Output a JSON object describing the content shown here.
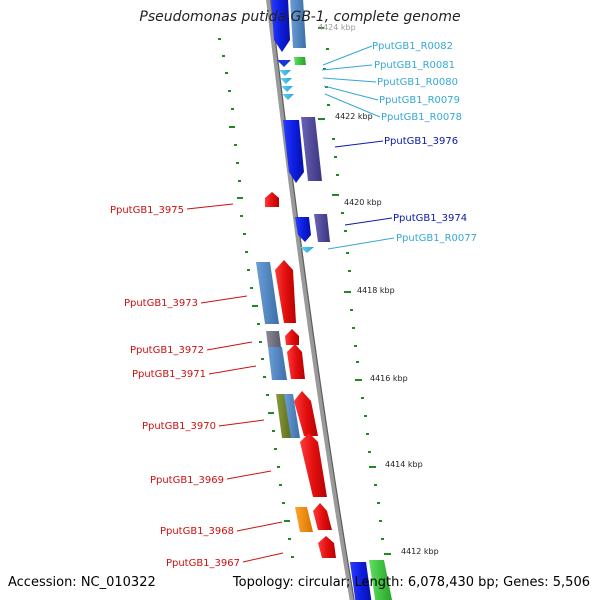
{
  "header": {
    "title": "Pseudomonas putida GB-1, complete genome"
  },
  "footer": {
    "accession": "Accession: NC_010322",
    "summary": "Topology: circular; Length: 6,078,430 bp; Genes: 5,506"
  },
  "scale_labels": [
    "4424 kbp",
    "4422 kbp",
    "4420 kbp",
    "4418 kbp",
    "4416 kbp",
    "4414 kbp",
    "4412 kbp"
  ],
  "gene_labels": {
    "right": [
      {
        "text": "PputGB1_R0082",
        "color": "#35a7d6"
      },
      {
        "text": "PputGB1_R0081",
        "color": "#35a7d6"
      },
      {
        "text": "PputGB1_R0080",
        "color": "#35a7d6"
      },
      {
        "text": "PputGB1_R0079",
        "color": "#35a7d6"
      },
      {
        "text": "PputGB1_R0078",
        "color": "#35a7d6"
      },
      {
        "text": "PputGB1_3976",
        "color": "#0a1aa8"
      },
      {
        "text": "PputGB1_3974",
        "color": "#0a1aa8"
      },
      {
        "text": "PputGB1_R0077",
        "color": "#35a7d6"
      }
    ],
    "left": [
      {
        "text": "PputGB1_3975",
        "color": "#cc1111"
      },
      {
        "text": "PputGB1_3973",
        "color": "#cc1111"
      },
      {
        "text": "PputGB1_3972",
        "color": "#cc1111"
      },
      {
        "text": "PputGB1_3971",
        "color": "#cc1111"
      },
      {
        "text": "PputGB1_3970",
        "color": "#cc1111"
      },
      {
        "text": "PputGB1_3969",
        "color": "#cc1111"
      },
      {
        "text": "PputGB1_3968",
        "color": "#cc1111"
      },
      {
        "text": "PputGB1_3967",
        "color": "#cc1111"
      }
    ]
  },
  "colors": {
    "backbone": "#8c8c8c",
    "tick": "#1f8a1f",
    "forward_gene": "#e11b1b",
    "reverse_gene": "#1220e6",
    "rna": "#39b8e6",
    "cds_blue": "#4f86c4",
    "cds_purple": "#50489a",
    "cds_gray": "#6f6f7f",
    "cds_olive": "#6f7f2a",
    "cds_orange": "#f08a0a",
    "cds_green": "#3cc43c"
  }
}
